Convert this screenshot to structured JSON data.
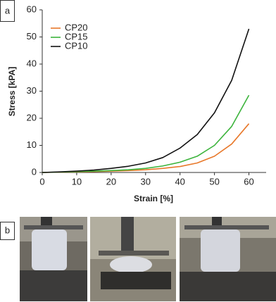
{
  "panel_labels": [
    "a",
    "b"
  ],
  "chart_data": {
    "type": "line",
    "x_label": "Strain [%]",
    "y_label": "Stress [kPA]",
    "x": [
      0,
      5,
      10,
      15,
      20,
      25,
      30,
      35,
      40,
      45,
      50,
      55,
      60
    ],
    "series": [
      {
        "name": "CP20",
        "color": "#e8782a",
        "values": [
          0,
          0.1,
          0.2,
          0.35,
          0.5,
          0.7,
          1.0,
          1.5,
          2.2,
          3.5,
          6,
          10.5,
          18
        ]
      },
      {
        "name": "CP15",
        "color": "#3cb43c",
        "values": [
          0,
          0.15,
          0.3,
          0.5,
          0.7,
          1.0,
          1.5,
          2.4,
          3.8,
          6,
          10,
          17,
          28.5
        ]
      },
      {
        "name": "CP10",
        "color": "#111111",
        "values": [
          0,
          0.2,
          0.5,
          0.9,
          1.5,
          2.3,
          3.5,
          5.5,
          9,
          14,
          22,
          34,
          53
        ]
      }
    ],
    "xlim": [
      0,
      65
    ],
    "ylim": [
      0,
      60
    ],
    "xticks": [
      0,
      10,
      20,
      30,
      40,
      50,
      60
    ],
    "yticks": [
      0,
      10,
      20,
      30,
      40,
      50,
      60
    ],
    "legend": "upper-left"
  }
}
